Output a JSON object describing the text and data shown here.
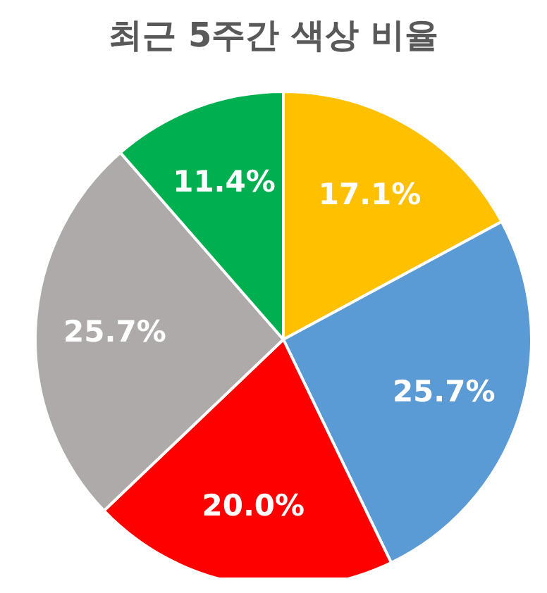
{
  "chart_data": {
    "type": "pie",
    "title": "최근 5주간 색상 비율",
    "categories": [
      null,
      null,
      null,
      null,
      null
    ],
    "values": [
      17.1,
      25.7,
      20.0,
      25.7,
      11.4
    ],
    "value_labels": [
      "17.1%",
      "25.7%",
      "20.0%",
      "25.7%",
      "11.4%"
    ],
    "colors": [
      "#ffc000",
      "#5b9bd5",
      "#ff0000",
      "#aeaaaa",
      "#00b050"
    ]
  }
}
